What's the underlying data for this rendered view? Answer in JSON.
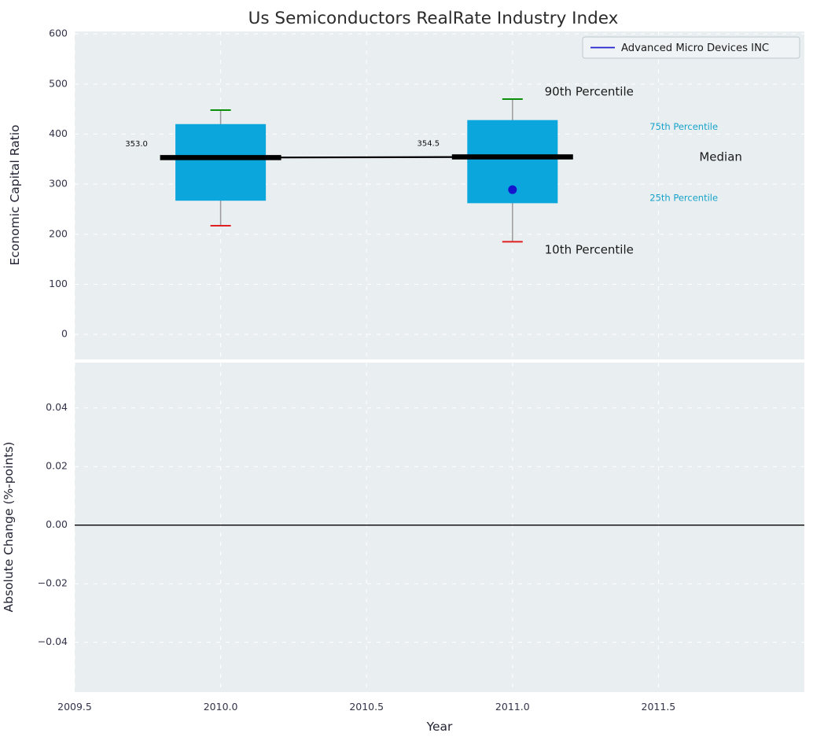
{
  "title": "Us Semiconductors RealRate Industry Index",
  "legend": {
    "label": "Advanced Micro Devices INC"
  },
  "xaxis": {
    "label": "Year",
    "ticks": [
      2009.5,
      2010,
      2010.5,
      2011,
      2011.5
    ],
    "lim": [
      2009.5,
      2012.0
    ]
  },
  "colors": {
    "figure_bg": "#ffffff",
    "axes_bg": "#e9eef1",
    "grid": "#ffffff",
    "box_fill": "#0ba6dc",
    "median_line": "#000000",
    "whisker": "#9a9a9a",
    "cap_90": "#0a8f0a",
    "cap_10": "#e02020",
    "company_point": "#1515cd",
    "legend_line": "#2222cc",
    "percentile_label": "#17a3c9",
    "annotation_text": "#1a1a1a",
    "tick_text": "#33334a",
    "median_value_text": "#111111"
  },
  "chart_data": [
    {
      "type": "boxplot",
      "title": "Us Semiconductors RealRate Industry Index",
      "ylabel": "Economic Capital Ratio",
      "ylim": [
        -50,
        605
      ],
      "yticks": [
        0,
        100,
        200,
        300,
        400,
        500,
        600
      ],
      "xlim": [
        2009.5,
        2012.0
      ],
      "xticks": [
        2009.5,
        2010,
        2010.5,
        2011,
        2011.5
      ],
      "grid": true,
      "legend_position": "upper right",
      "boxes": [
        {
          "x": 2010,
          "p10": 217,
          "p25": 267,
          "median": 353.0,
          "p75": 420,
          "p90": 448,
          "median_label": "353.0"
        },
        {
          "x": 2011,
          "p10": 185,
          "p25": 262,
          "median": 354.5,
          "p75": 428,
          "p90": 470,
          "median_label": "354.5"
        }
      ],
      "median_trend": [
        {
          "x": 2010,
          "y": 353.0
        },
        {
          "x": 2011,
          "y": 354.5
        }
      ],
      "series": [
        {
          "name": "Advanced Micro Devices INC",
          "type": "scatter",
          "color": "#1515cd",
          "points": [
            {
              "x": 2011,
              "y": 289
            }
          ]
        }
      ],
      "annotations": [
        {
          "text": "90th Percentile",
          "x": 2011.11,
          "y": 484,
          "size": 15,
          "color": "#1a1a1a",
          "anchor": "start"
        },
        {
          "text": "10th Percentile",
          "x": 2011.11,
          "y": 168,
          "size": 15,
          "color": "#1a1a1a",
          "anchor": "start"
        },
        {
          "text": "75th Percentile",
          "x": 2011.47,
          "y": 414,
          "size": 11.5,
          "color": "#17a3c9",
          "anchor": "start"
        },
        {
          "text": "Median",
          "x": 2011.64,
          "y": 354,
          "size": 15,
          "color": "#1a1a1a",
          "anchor": "start"
        },
        {
          "text": "25th Percentile",
          "x": 2011.47,
          "y": 272,
          "size": 11.5,
          "color": "#17a3c9",
          "anchor": "start"
        }
      ]
    },
    {
      "type": "line",
      "ylabel": "Absolute Change (%-points)",
      "ylim": [
        -0.057,
        0.0555
      ],
      "yticks": [
        -0.04,
        -0.02,
        0,
        0.02,
        0.04
      ],
      "zero_line": 0,
      "series": []
    }
  ]
}
